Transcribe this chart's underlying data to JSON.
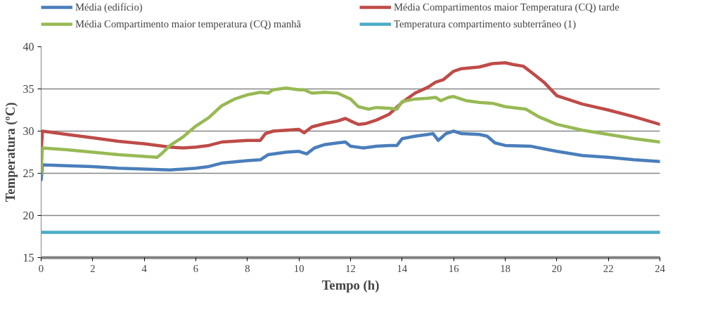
{
  "chart_data": {
    "type": "line",
    "xlabel": "Tempo (h)",
    "ylabel": "Temperatura (ºC)",
    "xlim": [
      0,
      24
    ],
    "ylim": [
      15,
      40
    ],
    "xticks": [
      0,
      2,
      4,
      6,
      8,
      10,
      12,
      14,
      16,
      18,
      20,
      22,
      24
    ],
    "yticks": [
      15,
      20,
      25,
      30,
      35,
      40
    ],
    "grid": "y",
    "legend": "top",
    "marker": "none",
    "line_style": "solid",
    "series": [
      {
        "name": "Média (edifício)",
        "color": "#4a7ebb",
        "x": [
          0,
          0.05,
          1,
          2,
          3,
          4,
          5,
          6,
          6.5,
          7,
          8,
          8.5,
          8.8,
          9.5,
          10,
          10.3,
          10.6,
          11,
          11.5,
          11.8,
          12,
          12.5,
          13,
          13.5,
          13.8,
          14,
          14.5,
          15,
          15.2,
          15.4,
          15.7,
          16,
          16.3,
          17,
          17.3,
          17.6,
          18,
          19,
          20,
          21,
          22,
          23,
          24
        ],
        "values": [
          24.2,
          26,
          25.9,
          25.8,
          25.6,
          25.5,
          25.4,
          25.6,
          25.8,
          26.2,
          26.5,
          26.6,
          27.2,
          27.5,
          27.6,
          27.3,
          28,
          28.4,
          28.6,
          28.7,
          28.2,
          28,
          28.2,
          28.3,
          28.3,
          29.1,
          29.4,
          29.6,
          29.7,
          28.9,
          29.7,
          30,
          29.7,
          29.6,
          29.4,
          28.6,
          28.3,
          28.2,
          27.6,
          27.1,
          26.9,
          26.6,
          26.4
        ]
      },
      {
        "name": "Média Compartimentos maior Temperatura (CQ) tarde",
        "color": "#be4b48",
        "x": [
          0,
          0.05,
          1,
          2,
          3,
          4,
          5,
          5.5,
          6,
          6.5,
          7,
          8,
          8.5,
          8.7,
          9,
          10,
          10.2,
          10.5,
          11,
          11.5,
          11.8,
          12,
          12.3,
          12.6,
          13,
          13.5,
          14,
          14.5,
          15,
          15.3,
          15.6,
          16,
          16.3,
          17,
          17.5,
          18,
          18.3,
          18.7,
          19,
          19.5,
          20,
          21,
          22,
          23,
          24
        ],
        "values": [
          27.5,
          30,
          29.6,
          29.2,
          28.8,
          28.5,
          28.1,
          28,
          28.1,
          28.3,
          28.7,
          28.9,
          28.9,
          29.7,
          30,
          30.2,
          29.8,
          30.5,
          30.9,
          31.2,
          31.5,
          31.2,
          30.8,
          30.9,
          31.3,
          32,
          33.4,
          34.5,
          35.2,
          35.8,
          36.1,
          37.1,
          37.4,
          37.6,
          38,
          38.1,
          37.9,
          37.7,
          37,
          35.8,
          34.2,
          33.2,
          32.5,
          31.7,
          30.8
        ]
      },
      {
        "name": "Média Compartimento maior temperatura (CQ) manhã",
        "color": "#98b954",
        "x": [
          0,
          0.05,
          1,
          2,
          3,
          4,
          4.5,
          4.7,
          5,
          5.5,
          6,
          6.5,
          7,
          7.5,
          8,
          8.5,
          8.8,
          9,
          9.5,
          10,
          10.2,
          10.5,
          11,
          11.5,
          12,
          12.3,
          12.7,
          13,
          13.5,
          13.8,
          14,
          14.5,
          15,
          15.3,
          15.5,
          15.8,
          16,
          16.5,
          17,
          17.5,
          18,
          18.5,
          18.8,
          19.3,
          20,
          21,
          22,
          23,
          24
        ],
        "values": [
          25,
          28,
          27.8,
          27.5,
          27.2,
          27,
          26.9,
          27.4,
          28.3,
          29.3,
          30.6,
          31.6,
          33,
          33.8,
          34.3,
          34.6,
          34.5,
          34.9,
          35.1,
          34.9,
          34.9,
          34.5,
          34.6,
          34.5,
          33.8,
          32.9,
          32.6,
          32.8,
          32.7,
          32.6,
          33.5,
          33.8,
          33.9,
          34,
          33.6,
          34,
          34.1,
          33.6,
          33.4,
          33.3,
          32.9,
          32.7,
          32.6,
          31.7,
          30.8,
          30.1,
          29.6,
          29.1,
          28.7
        ]
      },
      {
        "name": "Temperatura compartimento subterrâneo (1)",
        "color": "#4bacc6",
        "x": [
          0,
          24
        ],
        "values": [
          18,
          18
        ]
      }
    ]
  }
}
